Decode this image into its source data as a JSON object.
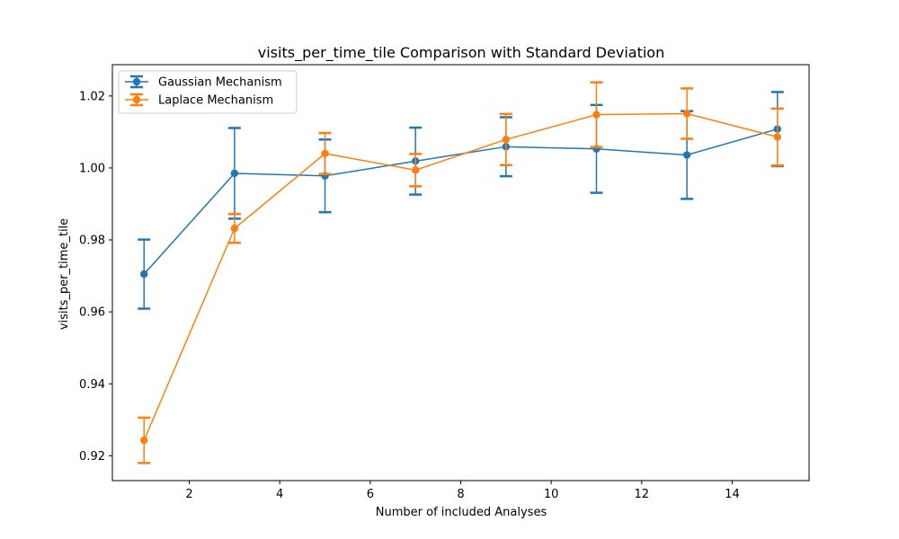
{
  "chart_data": {
    "type": "line",
    "title": "visits_per_time_tile Comparison with Standard Deviation",
    "xlabel": "Number of included Analyses",
    "ylabel": "visits_per_time_tile",
    "x": [
      1,
      3,
      5,
      7,
      9,
      11,
      13,
      15
    ],
    "xlim": [
      0.3,
      15.7
    ],
    "ylim": [
      0.9131,
      1.0287
    ],
    "xticks": [
      2,
      4,
      6,
      8,
      10,
      12,
      14
    ],
    "yticks": [
      0.92,
      0.94,
      0.96,
      0.98,
      1.0,
      1.02
    ],
    "ytick_labels": [
      "0.92",
      "0.94",
      "0.96",
      "0.98",
      "1.00",
      "1.02"
    ],
    "legend_position": "top-left",
    "grid": false,
    "series": [
      {
        "name": "Gaussian Mechanism",
        "color": "#1f77b4",
        "values": [
          0.9705,
          0.9985,
          0.9978,
          1.0019,
          1.0059,
          1.0053,
          1.0036,
          1.0108
        ],
        "std": [
          0.0096,
          0.0126,
          0.0101,
          0.0093,
          0.0082,
          0.0122,
          0.0122,
          0.0103
        ]
      },
      {
        "name": "Laplace Mechanism",
        "color": "#ff7f0e",
        "values": [
          0.9243,
          0.9832,
          1.004,
          0.9994,
          1.0079,
          1.0148,
          1.0151,
          1.0086
        ],
        "std": [
          0.0063,
          0.004,
          0.0057,
          0.0045,
          0.0071,
          0.009,
          0.007,
          0.0079
        ]
      }
    ]
  }
}
